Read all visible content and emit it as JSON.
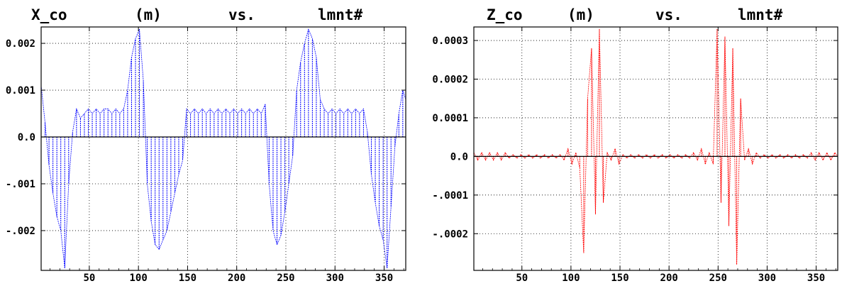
{
  "chart_data": [
    {
      "type": "line",
      "title_parts": [
        "X_co",
        "(m)",
        "vs.",
        "lmnt#"
      ],
      "xlim": [
        1,
        372
      ],
      "ylim": [
        -0.00285,
        0.00235
      ],
      "xticks": [
        50,
        100,
        150,
        200,
        250,
        300,
        350
      ],
      "xtick_labels": [
        "50",
        "100",
        "150",
        "200",
        "250",
        "300",
        "350"
      ],
      "yticks": [
        0.002,
        0.001,
        0.0,
        -0.001,
        -0.002
      ],
      "ytick_labels": [
        "0.002",
        "0.001",
        "0.0",
        "-.001",
        "-.002"
      ],
      "grid": true,
      "series": [
        {
          "color": "#0000ff",
          "x": [
            1,
            5,
            9,
            13,
            17,
            21,
            25,
            29,
            33,
            37,
            41,
            45,
            49,
            53,
            57,
            61,
            65,
            69,
            73,
            77,
            81,
            85,
            89,
            93,
            97,
            101,
            105,
            109,
            113,
            117,
            121,
            125,
            129,
            133,
            137,
            141,
            145,
            149,
            153,
            157,
            161,
            165,
            169,
            173,
            177,
            181,
            185,
            189,
            193,
            197,
            201,
            205,
            209,
            213,
            217,
            221,
            225,
            229,
            233,
            237,
            241,
            245,
            249,
            253,
            257,
            261,
            265,
            269,
            273,
            277,
            281,
            285,
            289,
            293,
            297,
            301,
            305,
            309,
            313,
            317,
            321,
            325,
            329,
            333,
            337,
            341,
            345,
            349,
            353,
            357,
            361,
            365,
            369,
            372
          ],
          "y": [
            0.0011,
            0.0003,
            -0.0006,
            -0.0012,
            -0.0017,
            -0.002,
            -0.0028,
            -0.001,
            0.0001,
            0.0006,
            0.0004,
            0.0005,
            0.0006,
            0.0005,
            0.0006,
            0.0005,
            0.0006,
            0.0006,
            0.0005,
            0.0006,
            0.0005,
            0.0006,
            0.001,
            0.0017,
            0.0021,
            0.0023,
            0.0012,
            -0.001,
            -0.0018,
            -0.0023,
            -0.0024,
            -0.0022,
            -0.002,
            -0.0016,
            -0.0012,
            -0.0008,
            -0.0005,
            0.0006,
            0.0005,
            0.0006,
            0.0005,
            0.0006,
            0.0005,
            0.0006,
            0.0005,
            0.0006,
            0.0005,
            0.0006,
            0.0005,
            0.0006,
            0.0005,
            0.0006,
            0.0005,
            0.0006,
            0.0005,
            0.0006,
            0.0005,
            0.0007,
            -0.001,
            -0.002,
            -0.0023,
            -0.0021,
            -0.0016,
            -0.001,
            -0.0004,
            0.001,
            0.0016,
            0.002,
            0.0023,
            0.0021,
            0.0017,
            0.0008,
            0.0006,
            0.0005,
            0.0006,
            0.0005,
            0.0006,
            0.0005,
            0.0006,
            0.0005,
            0.0006,
            0.0005,
            0.0006,
            0.0001,
            -0.0008,
            -0.0014,
            -0.0019,
            -0.0022,
            -0.0028,
            -0.0015,
            -0.0002,
            0.0005,
            0.001,
            0.0008
          ]
        }
      ]
    },
    {
      "type": "line",
      "title_parts": [
        "Z_co",
        "(m)",
        "vs.",
        "lmnt#"
      ],
      "xlim": [
        1,
        372
      ],
      "ylim": [
        -0.000295,
        0.000335
      ],
      "xticks": [
        50,
        100,
        150,
        200,
        250,
        300,
        350
      ],
      "xtick_labels": [
        "50",
        "100",
        "150",
        "200",
        "250",
        "300",
        "350"
      ],
      "yticks": [
        0.0003,
        0.0002,
        0.0001,
        0.0,
        -0.0001,
        -0.0002
      ],
      "ytick_labels": [
        "0.0003",
        "0.0002",
        "0.0001",
        "0.0",
        "-.0001",
        "-.0002"
      ],
      "grid": true,
      "series": [
        {
          "color": "#ff0000",
          "x": [
            1,
            5,
            9,
            13,
            17,
            21,
            25,
            29,
            33,
            37,
            41,
            45,
            49,
            53,
            57,
            61,
            65,
            69,
            73,
            77,
            81,
            85,
            89,
            93,
            97,
            101,
            105,
            109,
            113,
            117,
            121,
            125,
            129,
            133,
            137,
            141,
            145,
            149,
            153,
            157,
            161,
            165,
            169,
            173,
            177,
            181,
            185,
            189,
            193,
            197,
            201,
            205,
            209,
            213,
            217,
            221,
            225,
            229,
            233,
            237,
            241,
            245,
            249,
            253,
            257,
            261,
            265,
            269,
            273,
            277,
            281,
            285,
            289,
            293,
            297,
            301,
            305,
            309,
            313,
            317,
            321,
            325,
            329,
            333,
            337,
            341,
            345,
            349,
            353,
            357,
            361,
            365,
            369,
            372
          ],
          "y": [
            1e-05,
            -1e-05,
            1e-05,
            -1e-05,
            1e-05,
            -1e-05,
            1e-05,
            -1e-05,
            1e-05,
            -5e-06,
            5e-06,
            -5e-06,
            5e-06,
            -5e-06,
            5e-06,
            -5e-06,
            5e-06,
            -5e-06,
            5e-06,
            -5e-06,
            5e-06,
            -5e-06,
            5e-06,
            -1e-05,
            2e-05,
            -2e-05,
            1e-05,
            -3e-05,
            -0.00025,
            0.00015,
            0.00028,
            -0.00015,
            0.00033,
            -0.00012,
            1e-05,
            -1e-05,
            2e-05,
            -2e-05,
            5e-06,
            -5e-06,
            5e-06,
            -5e-06,
            5e-06,
            -5e-06,
            5e-06,
            -5e-06,
            5e-06,
            -5e-06,
            5e-06,
            -5e-06,
            5e-06,
            -5e-06,
            5e-06,
            -5e-06,
            5e-06,
            -5e-06,
            1e-05,
            -1e-05,
            2e-05,
            -2e-05,
            1e-05,
            -2e-05,
            0.00033,
            -0.00012,
            0.00031,
            -0.00018,
            0.00028,
            -0.00028,
            0.00015,
            -1e-05,
            2e-05,
            -2e-05,
            1e-05,
            -5e-06,
            5e-06,
            -5e-06,
            5e-06,
            -5e-06,
            5e-06,
            -5e-06,
            5e-06,
            -5e-06,
            5e-06,
            -5e-06,
            5e-06,
            -5e-06,
            1e-05,
            -1e-05,
            1e-05,
            -1e-05,
            1e-05,
            -1e-05,
            1e-05,
            0.0
          ]
        }
      ]
    }
  ]
}
